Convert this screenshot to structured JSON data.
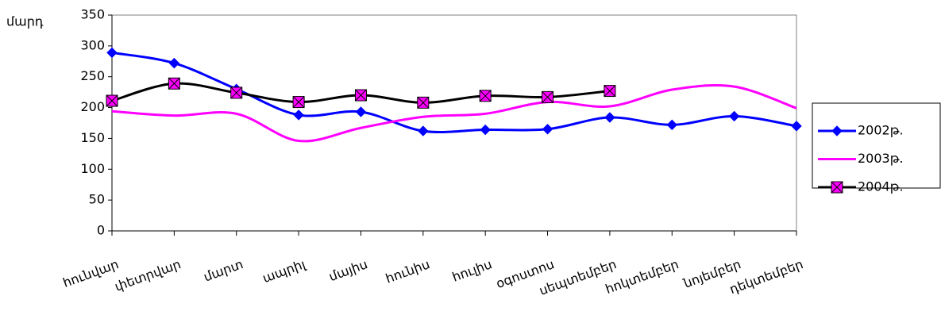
{
  "chart_data": {
    "type": "line",
    "y_label": "մարդ",
    "categories": [
      "հունվար",
      "փետրվար",
      "մարտ",
      "ապրիլ",
      "մայիս",
      "հունիս",
      "հուլիս",
      "օգոստոս",
      "սեպտեմբեր",
      "հոկտեմբեր",
      "նոյեմբեր",
      "դեկտեմբեր"
    ],
    "series": [
      {
        "name": "2002թ.",
        "color": "#0000ff",
        "marker": "diamond",
        "values": [
          289,
          272,
          230,
          188,
          193,
          162,
          164,
          165,
          184,
          172,
          186,
          170
        ]
      },
      {
        "name": "2003թ.",
        "color": "#ff00ff",
        "marker": "none",
        "values": [
          194,
          187,
          190,
          146,
          167,
          185,
          190,
          209,
          202,
          229,
          234,
          199
        ]
      },
      {
        "name": "2004թ.",
        "color": "#000000",
        "marker": "square-x",
        "values": [
          211,
          239,
          224,
          209,
          220,
          208,
          219,
          217,
          227,
          null,
          null,
          null
        ]
      }
    ],
    "ylim": [
      0,
      350
    ],
    "yticks": [
      0,
      50,
      100,
      150,
      200,
      250,
      300,
      350
    ],
    "grid": false,
    "legend": "right"
  }
}
